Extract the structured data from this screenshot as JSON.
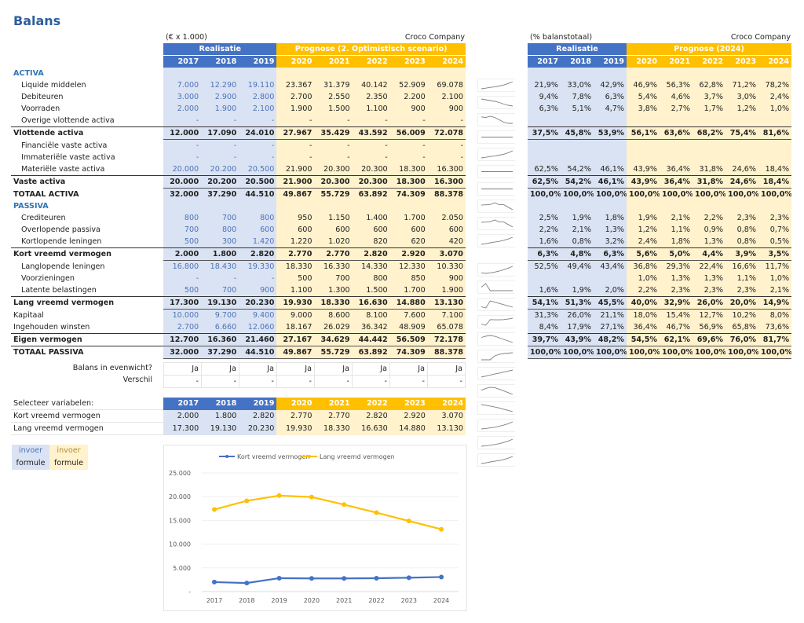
{
  "title": "Balans",
  "left": {
    "unit": "(€ x 1.000)",
    "company": "Croco Company",
    "real_label": "Realisatie",
    "prog_label": "Prognose (2. Optimistisch scenario)"
  },
  "right": {
    "unit": "(% balanstotaal)",
    "company": "Croco Company",
    "real_label": "Realisatie",
    "prog_label": "Prognose (2024)"
  },
  "years": [
    "2017",
    "2018",
    "2019",
    "2020",
    "2021",
    "2022",
    "2023",
    "2024"
  ],
  "rows": [
    {
      "label": "ACTIVA",
      "type": "section",
      "values": [],
      "pct": []
    },
    {
      "label": "Liquide middelen",
      "type": "item",
      "values": [
        "7.000",
        "12.290",
        "19.110",
        "23.367",
        "31.379",
        "40.142",
        "52.909",
        "69.078"
      ],
      "pct": [
        "21,9%",
        "33,0%",
        "42,9%",
        "46,9%",
        "56,3%",
        "62,8%",
        "71,2%",
        "78,2%"
      ]
    },
    {
      "label": "Debiteuren",
      "type": "item",
      "values": [
        "3.000",
        "2.900",
        "2.800",
        "2.700",
        "2.550",
        "2.350",
        "2.200",
        "2.100"
      ],
      "pct": [
        "9,4%",
        "7,8%",
        "6,3%",
        "5,4%",
        "4,6%",
        "3,7%",
        "3,0%",
        "2,4%"
      ]
    },
    {
      "label": "Voorraden",
      "type": "item",
      "values": [
        "2.000",
        "1.900",
        "2.100",
        "1.900",
        "1.500",
        "1.100",
        "900",
        "900"
      ],
      "pct": [
        "6,3%",
        "5,1%",
        "4,7%",
        "3,8%",
        "2,7%",
        "1,7%",
        "1,2%",
        "1,0%"
      ]
    },
    {
      "label": "Overige vlottende activa",
      "type": "item",
      "values": [
        "-",
        "-",
        "-",
        "-",
        "-",
        "-",
        "-",
        "-"
      ],
      "pct": [
        "",
        "",
        "",
        "",
        "",
        "",
        "",
        ""
      ]
    },
    {
      "label": "Vlottende activa",
      "type": "total",
      "values": [
        "12.000",
        "17.090",
        "24.010",
        "27.967",
        "35.429",
        "43.592",
        "56.009",
        "72.078"
      ],
      "pct": [
        "37,5%",
        "45,8%",
        "53,9%",
        "56,1%",
        "63,6%",
        "68,2%",
        "75,4%",
        "81,6%"
      ]
    },
    {
      "label": "Financiële vaste activa",
      "type": "item",
      "values": [
        "-",
        "-",
        "-",
        "-",
        "-",
        "-",
        "-",
        "-"
      ],
      "pct": [
        "",
        "",
        "",
        "",
        "",
        "",
        "",
        ""
      ]
    },
    {
      "label": "Immateriële vaste activa",
      "type": "item",
      "values": [
        "-",
        "-",
        "-",
        "-",
        "-",
        "-",
        "-",
        "-"
      ],
      "pct": [
        "",
        "",
        "",
        "",
        "",
        "",
        "",
        ""
      ]
    },
    {
      "label": "Materiële vaste activa",
      "type": "item",
      "values": [
        "20.000",
        "20.200",
        "20.500",
        "21.900",
        "20.300",
        "20.300",
        "18.300",
        "16.300"
      ],
      "pct": [
        "62,5%",
        "54,2%",
        "46,1%",
        "43,9%",
        "36,4%",
        "31,8%",
        "24,6%",
        "18,4%"
      ]
    },
    {
      "label": "Vaste activa",
      "type": "total",
      "values": [
        "20.000",
        "20.200",
        "20.500",
        "21.900",
        "20.300",
        "20.300",
        "18.300",
        "16.300"
      ],
      "pct": [
        "62,5%",
        "54,2%",
        "46,1%",
        "43,9%",
        "36,4%",
        "31,8%",
        "24,6%",
        "18,4%"
      ]
    },
    {
      "label": "TOTAAL ACTIVA",
      "type": "grand",
      "values": [
        "32.000",
        "37.290",
        "44.510",
        "49.867",
        "55.729",
        "63.892",
        "74.309",
        "88.378"
      ],
      "pct": [
        "100,0%",
        "100,0%",
        "100,0%",
        "100,0%",
        "100,0%",
        "100,0%",
        "100,0%",
        "100,0%"
      ]
    },
    {
      "label": "PASSIVA",
      "type": "section",
      "values": [],
      "pct": []
    },
    {
      "label": "Crediteuren",
      "type": "item",
      "values": [
        "800",
        "700",
        "800",
        "950",
        "1.150",
        "1.400",
        "1.700",
        "2.050"
      ],
      "pct": [
        "2,5%",
        "1,9%",
        "1,8%",
        "1,9%",
        "2,1%",
        "2,2%",
        "2,3%",
        "2,3%"
      ]
    },
    {
      "label": "Overlopende passiva",
      "type": "item",
      "values": [
        "700",
        "800",
        "600",
        "600",
        "600",
        "600",
        "600",
        "600"
      ],
      "pct": [
        "2,2%",
        "2,1%",
        "1,3%",
        "1,2%",
        "1,1%",
        "0,9%",
        "0,8%",
        "0,7%"
      ]
    },
    {
      "label": "Kortlopende leningen",
      "type": "item",
      "values": [
        "500",
        "300",
        "1.420",
        "1.220",
        "1.020",
        "820",
        "620",
        "420"
      ],
      "pct": [
        "1,6%",
        "0,8%",
        "3,2%",
        "2,4%",
        "1,8%",
        "1,3%",
        "0,8%",
        "0,5%"
      ]
    },
    {
      "label": "Kort vreemd vermogen",
      "type": "total",
      "values": [
        "2.000",
        "1.800",
        "2.820",
        "2.770",
        "2.770",
        "2.820",
        "2.920",
        "3.070"
      ],
      "pct": [
        "6,3%",
        "4,8%",
        "6,3%",
        "5,6%",
        "5,0%",
        "4,4%",
        "3,9%",
        "3,5%"
      ]
    },
    {
      "label": "Langlopende leningen",
      "type": "item",
      "values": [
        "16.800",
        "18.430",
        "19.330",
        "18.330",
        "16.330",
        "14.330",
        "12.330",
        "10.330"
      ],
      "pct": [
        "52,5%",
        "49,4%",
        "43,4%",
        "36,8%",
        "29,3%",
        "22,4%",
        "16,6%",
        "11,7%"
      ]
    },
    {
      "label": "Voorzieningen",
      "type": "item",
      "values": [
        "-",
        "-",
        "-",
        "500",
        "700",
        "800",
        "850",
        "900"
      ],
      "pct": [
        "",
        "",
        "",
        "1,0%",
        "1,3%",
        "1,3%",
        "1,1%",
        "1,0%"
      ]
    },
    {
      "label": "Latente belastingen",
      "type": "item",
      "values": [
        "500",
        "700",
        "900",
        "1.100",
        "1.300",
        "1.500",
        "1.700",
        "1.900"
      ],
      "pct": [
        "1,6%",
        "1,9%",
        "2,0%",
        "2,2%",
        "2,3%",
        "2,3%",
        "2,3%",
        "2,1%"
      ]
    },
    {
      "label": "Lang vreemd vermogen",
      "type": "total",
      "values": [
        "17.300",
        "19.130",
        "20.230",
        "19.930",
        "18.330",
        "16.630",
        "14.880",
        "13.130"
      ],
      "pct": [
        "54,1%",
        "51,3%",
        "45,5%",
        "40,0%",
        "32,9%",
        "26,0%",
        "20,0%",
        "14,9%"
      ]
    },
    {
      "label": "Kapitaal",
      "type": "plain",
      "values": [
        "10.000",
        "9.700",
        "9.400",
        "9.000",
        "8.600",
        "8.100",
        "7.600",
        "7.100"
      ],
      "pct": [
        "31,3%",
        "26,0%",
        "21,1%",
        "18,0%",
        "15,4%",
        "12,7%",
        "10,2%",
        "8,0%"
      ]
    },
    {
      "label": "Ingehouden winsten",
      "type": "plain",
      "values": [
        "2.700",
        "6.660",
        "12.060",
        "18.167",
        "26.029",
        "36.342",
        "48.909",
        "65.078"
      ],
      "pct": [
        "8,4%",
        "17,9%",
        "27,1%",
        "36,4%",
        "46,7%",
        "56,9%",
        "65,8%",
        "73,6%"
      ]
    },
    {
      "label": "Eigen vermogen",
      "type": "total",
      "values": [
        "12.700",
        "16.360",
        "21.460",
        "27.167",
        "34.629",
        "44.442",
        "56.509",
        "72.178"
      ],
      "pct": [
        "39,7%",
        "43,9%",
        "48,2%",
        "54,5%",
        "62,1%",
        "69,6%",
        "76,0%",
        "81,7%"
      ]
    },
    {
      "label": "TOTAAL PASSIVA",
      "type": "total",
      "values": [
        "32.000",
        "37.290",
        "44.510",
        "49.867",
        "55.729",
        "63.892",
        "74.309",
        "88.378"
      ],
      "pct": [
        "100,0%",
        "100,0%",
        "100,0%",
        "100,0%",
        "100,0%",
        "100,0%",
        "100,0%",
        "100,0%"
      ]
    }
  ],
  "check": {
    "balance_label": "Balans in evenwicht?",
    "balance": [
      "Ja",
      "Ja",
      "Ja",
      "Ja",
      "Ja",
      "Ja",
      "Ja",
      "Ja"
    ],
    "diff_label": "Verschil",
    "diff": [
      "-",
      "-",
      "-",
      "-",
      "-",
      "-",
      "-",
      "-"
    ]
  },
  "select": {
    "label": "Selecteer variabelen:",
    "rows": [
      {
        "label": "Kort vreemd vermogen",
        "values": [
          "2.000",
          "1.800",
          "2.820",
          "2.770",
          "2.770",
          "2.820",
          "2.920",
          "3.070"
        ]
      },
      {
        "label": "Lang vreemd vermogen",
        "values": [
          "17.300",
          "19.130",
          "20.230",
          "19.930",
          "18.330",
          "16.630",
          "14.880",
          "13.130"
        ]
      }
    ]
  },
  "legend_key": {
    "input": "invoer",
    "formula": "formule"
  },
  "colors": {
    "blue": "#4472c4",
    "yellow": "#ffc000",
    "blue_bg": "#dae3f3",
    "yellow_bg": "#fff2cc"
  },
  "chart_data": {
    "type": "line",
    "categories": [
      "2017",
      "2018",
      "2019",
      "2020",
      "2021",
      "2022",
      "2023",
      "2024"
    ],
    "series": [
      {
        "name": "Kort vreemd vermogen",
        "color": "#4472c4",
        "values": [
          2000,
          1800,
          2820,
          2770,
          2770,
          2820,
          2920,
          3070
        ]
      },
      {
        "name": "Lang vreemd vermogen",
        "color": "#ffc000",
        "values": [
          17300,
          19130,
          20230,
          19930,
          18330,
          16630,
          14880,
          13130
        ]
      }
    ],
    "ylim": [
      0,
      25000
    ],
    "yticks": [
      "-",
      "5.000",
      "10.000",
      "15.000",
      "20.000",
      "25.000"
    ],
    "legend": "top",
    "grid": true
  }
}
